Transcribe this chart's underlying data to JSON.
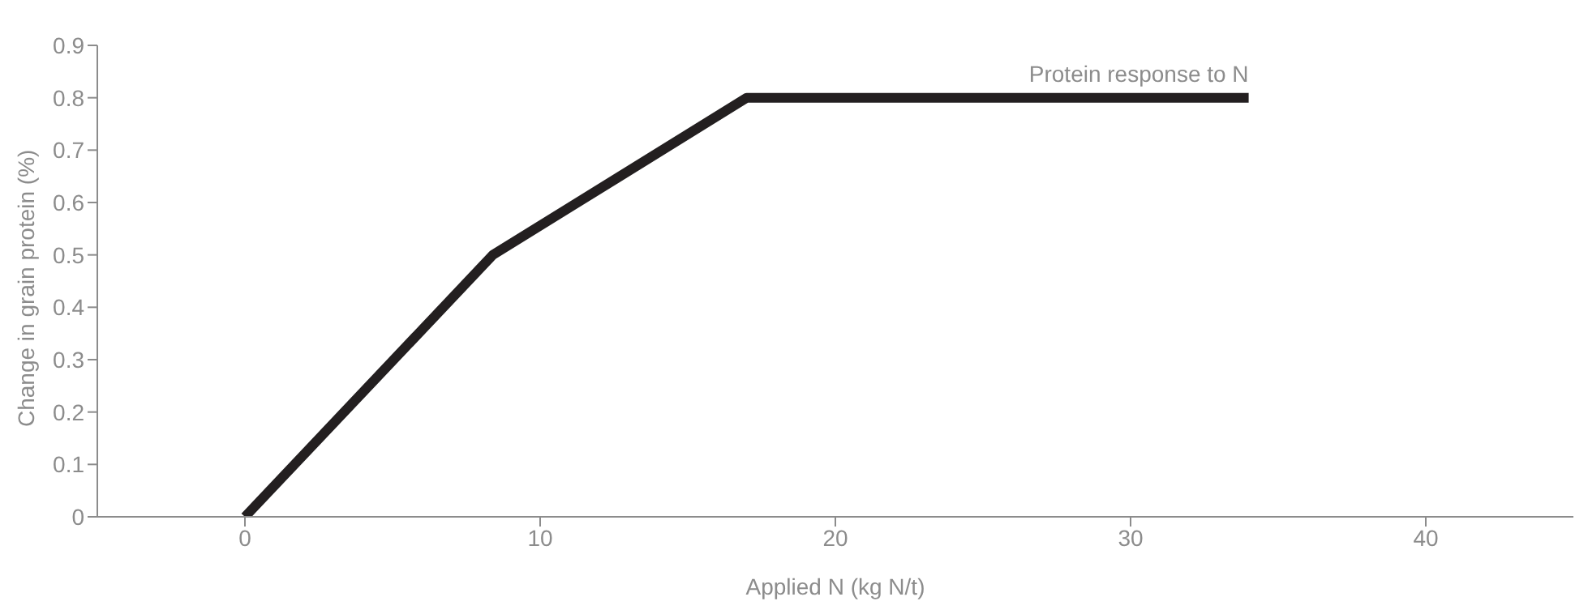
{
  "chart_data": {
    "type": "line",
    "xlabel": "Applied N (kg N/t)",
    "ylabel": "Change in grain protein (%)",
    "xlim": [
      -5,
      45
    ],
    "xticks": [
      0,
      10,
      20,
      30,
      40
    ],
    "ylim": [
      0,
      0.9
    ],
    "yticks": [
      0,
      0.1,
      0.2,
      0.3,
      0.4,
      0.5,
      0.6,
      0.7,
      0.8,
      0.9
    ],
    "grid": false,
    "legend": false,
    "marker": "none",
    "line_style": "solid",
    "series": [
      {
        "name": "Protein response to N",
        "color": "#231f20",
        "x": [
          0,
          8.4,
          17,
          34
        ],
        "values": [
          0,
          0.5,
          0.8,
          0.8
        ]
      }
    ]
  }
}
